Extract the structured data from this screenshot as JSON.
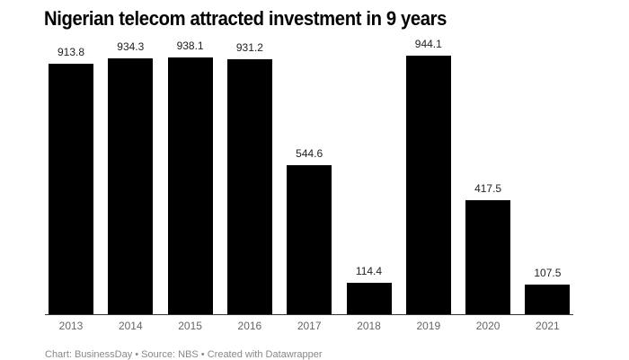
{
  "chart_data": {
    "type": "bar",
    "title": "Nigerian telecom attracted investment in 9 years",
    "categories": [
      "2013",
      "2014",
      "2015",
      "2016",
      "2017",
      "2018",
      "2019",
      "2020",
      "2021"
    ],
    "values": [
      913.8,
      934.3,
      938.1,
      931.2,
      544.6,
      114.4,
      944.1,
      417.5,
      107.5
    ],
    "value_labels": [
      "913.8",
      "934.3",
      "938.1",
      "931.2",
      "544.6",
      "114.4",
      "944.1",
      "417.5",
      "107.5"
    ],
    "xlabel": "",
    "ylabel": "",
    "ylim": [
      0,
      1000
    ],
    "grid": false,
    "legend": null,
    "bar_color": "#000000"
  },
  "footer": {
    "text": "Chart: BusinessDay • Source: NBS • Created with Datawrapper"
  }
}
